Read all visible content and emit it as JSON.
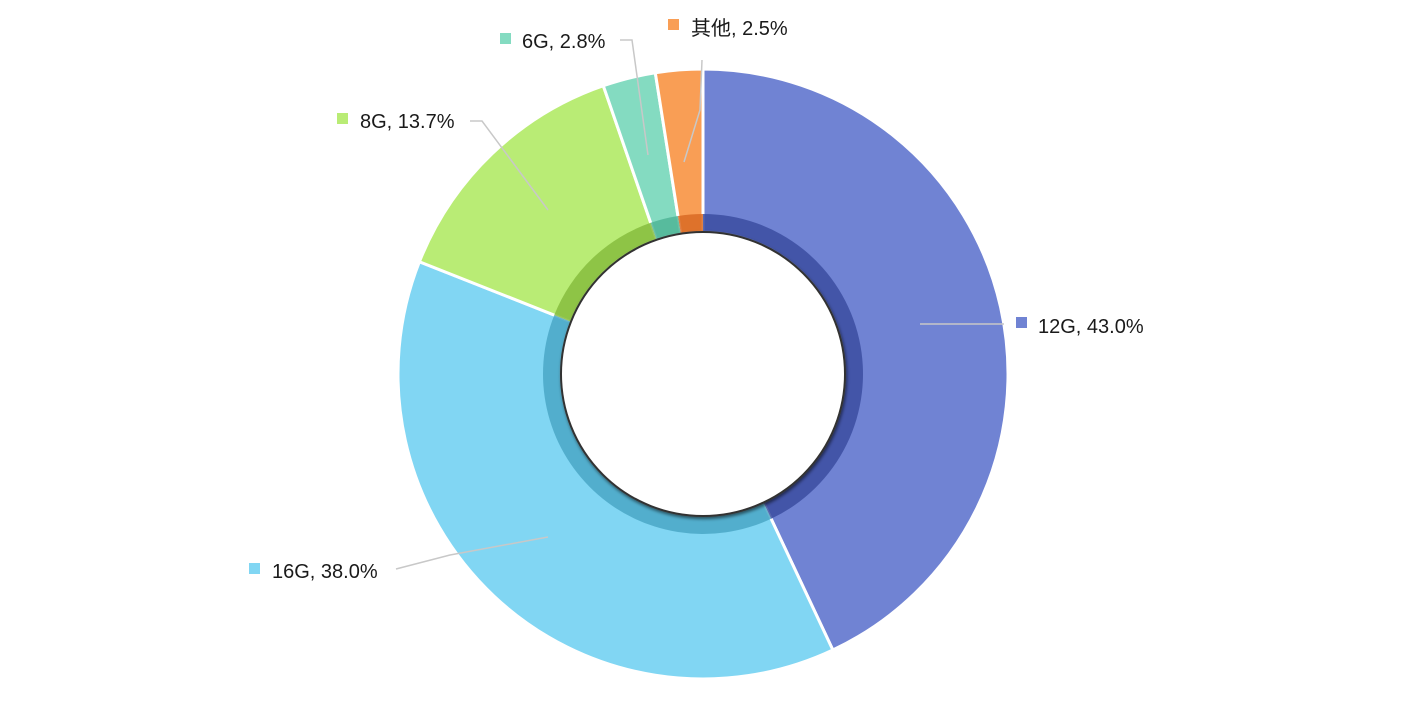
{
  "chart_data": {
    "type": "pie",
    "donut": true,
    "title": "",
    "legend": "none",
    "labels": [
      "12G",
      "16G",
      "8G",
      "6G",
      "其他"
    ],
    "values": [
      43.0,
      38.0,
      13.7,
      2.8,
      2.5
    ],
    "unit": "%",
    "colors": [
      "#7083d3",
      "#81d6f3",
      "#b9ec75",
      "#84dbc1",
      "#f99e55"
    ],
    "inner_shade_colors": [
      "#3b4ea0",
      "#4aa7c6",
      "#86bd3e",
      "#4fb597",
      "#d96a24"
    ],
    "data_labels": [
      "12G, 43.0%",
      "16G, 38.0%",
      "8G, 13.7%",
      "6G, 2.8%",
      "其他, 2.5%"
    ]
  }
}
